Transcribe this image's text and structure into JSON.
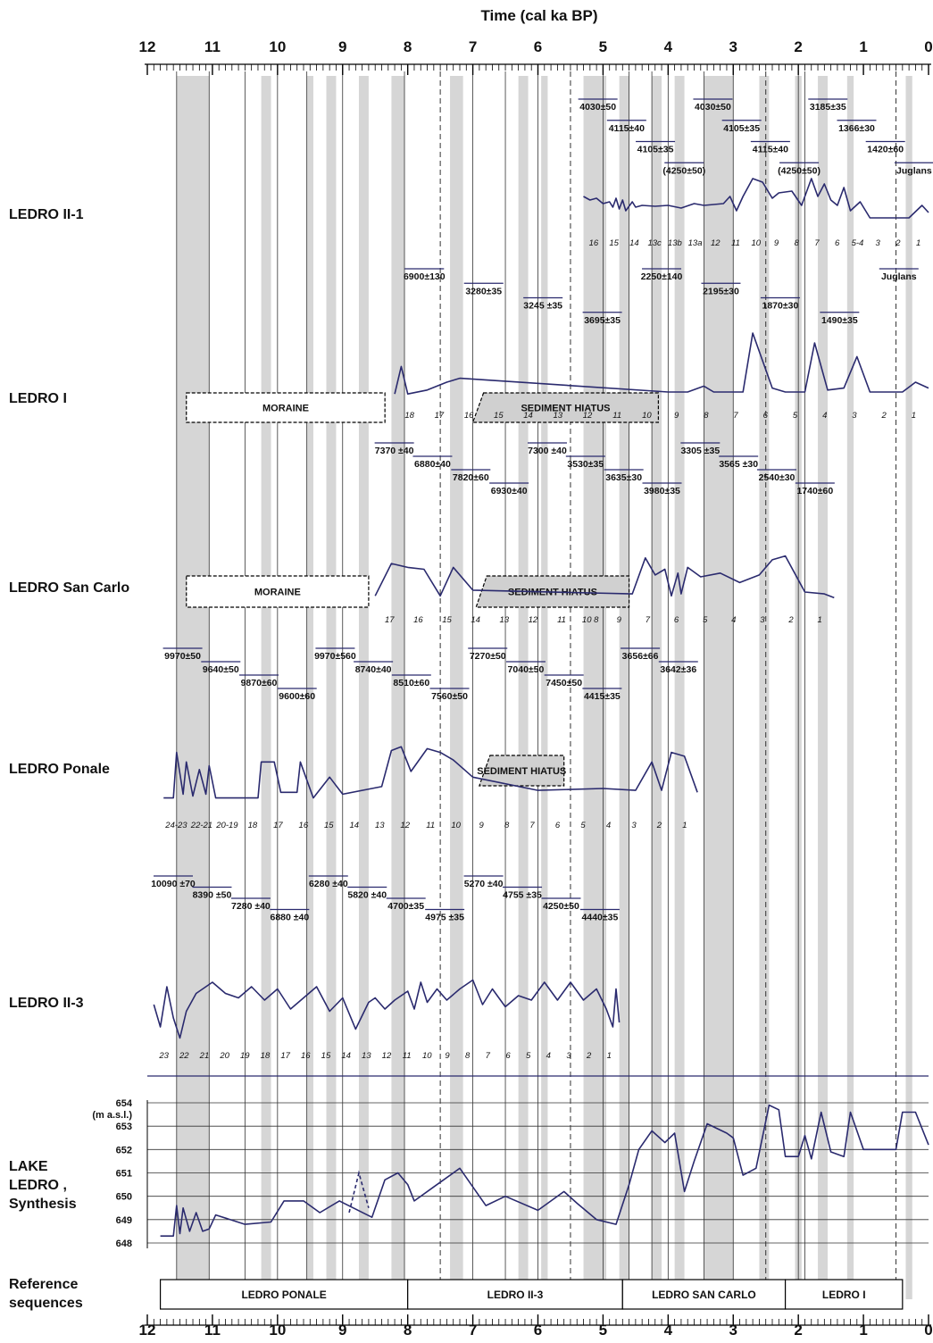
{
  "chart_data": {
    "type": "line",
    "title": "Time (cal ka BP)",
    "x_axis": {
      "ticks": [
        "12",
        "11",
        "10",
        "9",
        "8",
        "7",
        "6",
        "5",
        "4",
        "3",
        "2",
        "1",
        "0"
      ],
      "range": [
        12,
        0
      ],
      "reversed": true
    },
    "series": [
      {
        "name": "LEDRO II-1",
        "points": [
          [
            5.3,
            2.5
          ],
          [
            5.2,
            2.7
          ],
          [
            5.1,
            2.6
          ],
          [
            5.0,
            2.9
          ],
          [
            4.9,
            2.8
          ],
          [
            4.85,
            3.1
          ],
          [
            4.8,
            2.6
          ],
          [
            4.75,
            3.2
          ],
          [
            4.7,
            2.7
          ],
          [
            4.65,
            3.3
          ],
          [
            4.55,
            2.8
          ],
          [
            4.5,
            3.1
          ],
          [
            4.4,
            3.0
          ],
          [
            4.2,
            3.05
          ],
          [
            4.0,
            3.0
          ],
          [
            3.8,
            3.15
          ],
          [
            3.6,
            2.9
          ],
          [
            3.45,
            3.0
          ],
          [
            3.3,
            2.95
          ],
          [
            3.15,
            2.9
          ],
          [
            3.05,
            2.5
          ],
          [
            2.95,
            3.3
          ],
          [
            2.85,
            2.5
          ],
          [
            2.7,
            1.5
          ],
          [
            2.55,
            1.7
          ],
          [
            2.4,
            2.6
          ],
          [
            2.3,
            2.3
          ],
          [
            2.1,
            2.2
          ],
          [
            1.95,
            3.0
          ],
          [
            1.8,
            1.5
          ],
          [
            1.7,
            2.5
          ],
          [
            1.6,
            1.8
          ],
          [
            1.5,
            2.7
          ],
          [
            1.4,
            3.0
          ],
          [
            1.3,
            2.0
          ],
          [
            1.2,
            3.3
          ],
          [
            1.05,
            2.8
          ],
          [
            0.9,
            3.7
          ],
          [
            0.6,
            3.7
          ],
          [
            0.3,
            3.7
          ],
          [
            0.1,
            3.0
          ],
          [
            0.0,
            3.4
          ]
        ],
        "zones": [
          "16",
          "15",
          "14",
          "13c",
          "13b",
          "13a",
          "12",
          "11",
          "10",
          "9",
          "8",
          "7",
          "6",
          "5-4",
          "3",
          "2",
          "1"
        ]
      },
      {
        "name": "LEDRO I",
        "points": [
          [
            8.2,
            3.6
          ],
          [
            8.1,
            2.2
          ],
          [
            8.0,
            3.6
          ],
          [
            7.7,
            3.4
          ],
          [
            7.4,
            3.0
          ],
          [
            7.2,
            2.8
          ],
          [
            4.0,
            3.5
          ],
          [
            3.7,
            3.5
          ],
          [
            3.45,
            3.2
          ],
          [
            3.3,
            3.5
          ],
          [
            2.85,
            3.5
          ],
          [
            2.7,
            0.5
          ],
          [
            2.4,
            3.3
          ],
          [
            2.2,
            3.5
          ],
          [
            1.9,
            3.5
          ],
          [
            1.75,
            1.0
          ],
          [
            1.55,
            3.4
          ],
          [
            1.3,
            3.3
          ],
          [
            1.1,
            1.7
          ],
          [
            0.9,
            3.5
          ],
          [
            0.4,
            3.5
          ],
          [
            0.2,
            3.0
          ],
          [
            0.0,
            3.3
          ]
        ],
        "zones": [
          "18",
          "17",
          "16",
          "15",
          "14",
          "13",
          "12",
          "11",
          "10",
          "9",
          "8",
          "7",
          "6",
          "5",
          "4",
          "3",
          "2",
          "1"
        ]
      },
      {
        "name": "LEDRO San Carlo",
        "points": [
          [
            8.5,
            3.4
          ],
          [
            8.25,
            1.7
          ],
          [
            8.0,
            1.9
          ],
          [
            7.75,
            2.0
          ],
          [
            7.5,
            3.4
          ],
          [
            7.3,
            1.9
          ],
          [
            7.0,
            3.1
          ],
          [
            4.55,
            3.3
          ],
          [
            4.35,
            1.4
          ],
          [
            4.2,
            2.3
          ],
          [
            4.05,
            2.0
          ],
          [
            3.95,
            3.4
          ],
          [
            3.85,
            2.2
          ],
          [
            3.8,
            3.3
          ],
          [
            3.7,
            1.9
          ],
          [
            3.5,
            2.4
          ],
          [
            3.2,
            2.2
          ],
          [
            2.9,
            2.7
          ],
          [
            2.6,
            2.3
          ],
          [
            2.4,
            1.5
          ],
          [
            2.2,
            1.3
          ],
          [
            1.9,
            3.2
          ],
          [
            1.6,
            3.3
          ],
          [
            1.45,
            3.5
          ]
        ],
        "zones": [
          "17",
          "16",
          "15",
          "14",
          "13",
          "12",
          "11",
          "10 8",
          "9",
          "7",
          "6",
          "5",
          "4",
          "3",
          "2",
          "1"
        ]
      },
      {
        "name": "LEDRO Ponale",
        "points": [
          [
            11.75,
            3.7
          ],
          [
            11.6,
            3.7
          ],
          [
            11.55,
            1.3
          ],
          [
            11.45,
            3.5
          ],
          [
            11.4,
            1.8
          ],
          [
            11.3,
            3.6
          ],
          [
            11.2,
            2.2
          ],
          [
            11.1,
            3.5
          ],
          [
            11.05,
            2.0
          ],
          [
            10.95,
            3.7
          ],
          [
            10.3,
            3.7
          ],
          [
            10.25,
            1.8
          ],
          [
            10.05,
            1.8
          ],
          [
            9.95,
            3.4
          ],
          [
            9.7,
            3.4
          ],
          [
            9.65,
            1.8
          ],
          [
            9.45,
            3.7
          ],
          [
            9.2,
            2.6
          ],
          [
            9.0,
            3.5
          ],
          [
            8.4,
            3.1
          ],
          [
            8.25,
            1.2
          ],
          [
            8.1,
            1.0
          ],
          [
            7.95,
            2.3
          ],
          [
            7.7,
            1.1
          ],
          [
            7.5,
            1.3
          ],
          [
            7.3,
            1.7
          ],
          [
            7.0,
            2.6
          ],
          [
            6.0,
            3.3
          ],
          [
            5.0,
            3.2
          ],
          [
            4.5,
            3.3
          ],
          [
            4.25,
            1.8
          ],
          [
            4.1,
            3.3
          ],
          [
            3.95,
            1.3
          ],
          [
            3.75,
            1.5
          ],
          [
            3.55,
            3.4
          ]
        ],
        "zones": [
          "24-23",
          "22-21",
          "20-19",
          "18",
          "17",
          "16",
          "15",
          "14",
          "13",
          "12",
          "11",
          "10",
          "9",
          "8",
          "7",
          "6",
          "5",
          "4",
          "3",
          "2",
          "1"
        ]
      },
      {
        "name": "LEDRO II-3",
        "points": [
          [
            11.9,
            2.2
          ],
          [
            11.8,
            3.2
          ],
          [
            11.7,
            1.4
          ],
          [
            11.6,
            2.8
          ],
          [
            11.5,
            3.7
          ],
          [
            11.4,
            2.5
          ],
          [
            11.25,
            1.7
          ],
          [
            11.0,
            1.2
          ],
          [
            10.8,
            1.7
          ],
          [
            10.6,
            1.9
          ],
          [
            10.4,
            1.4
          ],
          [
            10.2,
            2.0
          ],
          [
            10.0,
            1.5
          ],
          [
            9.8,
            2.4
          ],
          [
            9.6,
            1.9
          ],
          [
            9.4,
            1.4
          ],
          [
            9.2,
            2.5
          ],
          [
            9.0,
            1.9
          ],
          [
            8.8,
            3.3
          ],
          [
            8.6,
            2.1
          ],
          [
            8.5,
            1.9
          ],
          [
            8.35,
            2.4
          ],
          [
            8.2,
            2.0
          ],
          [
            8.0,
            1.6
          ],
          [
            7.9,
            2.4
          ],
          [
            7.8,
            1.2
          ],
          [
            7.7,
            2.1
          ],
          [
            7.55,
            1.5
          ],
          [
            7.4,
            2.0
          ],
          [
            7.2,
            1.5
          ],
          [
            7.0,
            1.1
          ],
          [
            6.85,
            2.2
          ],
          [
            6.7,
            1.5
          ],
          [
            6.5,
            2.3
          ],
          [
            6.3,
            1.8
          ],
          [
            6.1,
            2.0
          ],
          [
            5.9,
            1.2
          ],
          [
            5.7,
            2.0
          ],
          [
            5.5,
            1.2
          ],
          [
            5.3,
            2.0
          ],
          [
            5.1,
            1.5
          ],
          [
            4.95,
            2.4
          ],
          [
            4.85,
            3.2
          ],
          [
            4.8,
            1.5
          ],
          [
            4.75,
            3.0
          ]
        ],
        "zones": [
          "23",
          "22",
          "21",
          "20",
          "19",
          "18",
          "17",
          "16",
          "15",
          "14",
          "13",
          "12",
          "11",
          "10",
          "9",
          "8",
          "7",
          "6",
          "5",
          "4",
          "3",
          "2",
          "1"
        ]
      },
      {
        "name": "LAKE LEDRO, Synthesis",
        "y_axis": {
          "label": "(m a.s.l.)",
          "ticks": [
            "654",
            "653",
            "652",
            "651",
            "650",
            "649",
            "648"
          ],
          "range": [
            648,
            654
          ]
        },
        "points": [
          [
            11.8,
            648.3
          ],
          [
            11.6,
            648.3
          ],
          [
            11.55,
            649.6
          ],
          [
            11.5,
            648.4
          ],
          [
            11.45,
            649.5
          ],
          [
            11.35,
            648.5
          ],
          [
            11.25,
            649.3
          ],
          [
            11.15,
            648.5
          ],
          [
            11.05,
            648.6
          ],
          [
            10.95,
            649.2
          ],
          [
            10.5,
            648.8
          ],
          [
            10.1,
            648.9
          ],
          [
            9.9,
            649.8
          ],
          [
            9.6,
            649.8
          ],
          [
            9.35,
            649.3
          ],
          [
            9.05,
            649.8
          ],
          [
            8.55,
            649.1
          ],
          [
            8.35,
            650.7
          ],
          [
            8.15,
            651.0
          ],
          [
            8.0,
            650.5
          ],
          [
            7.9,
            649.8
          ],
          [
            7.6,
            650.4
          ],
          [
            7.2,
            651.2
          ],
          [
            6.8,
            649.6
          ],
          [
            6.5,
            650.0
          ],
          [
            6.0,
            649.4
          ],
          [
            5.6,
            650.2
          ],
          [
            5.4,
            649.7
          ],
          [
            5.1,
            649.0
          ],
          [
            4.8,
            648.8
          ],
          [
            4.6,
            650.5
          ],
          [
            4.45,
            652.0
          ],
          [
            4.25,
            652.8
          ],
          [
            4.05,
            652.3
          ],
          [
            3.9,
            652.7
          ],
          [
            3.75,
            650.2
          ],
          [
            3.6,
            651.5
          ],
          [
            3.4,
            653.1
          ],
          [
            3.1,
            652.7
          ],
          [
            3.0,
            652.5
          ],
          [
            2.85,
            650.9
          ],
          [
            2.65,
            651.2
          ],
          [
            2.45,
            653.9
          ],
          [
            2.3,
            653.7
          ],
          [
            2.2,
            651.7
          ],
          [
            2.0,
            651.7
          ],
          [
            1.9,
            652.6
          ],
          [
            1.8,
            651.6
          ],
          [
            1.65,
            653.6
          ],
          [
            1.5,
            651.9
          ],
          [
            1.3,
            651.7
          ],
          [
            1.2,
            653.6
          ],
          [
            1.0,
            652.0
          ],
          [
            0.5,
            652.0
          ],
          [
            0.4,
            653.6
          ],
          [
            0.2,
            653.6
          ],
          [
            0.0,
            652.2
          ]
        ]
      }
    ],
    "row_labels": [
      "LEDRO II-1",
      "LEDRO I",
      "LEDRO San Carlo",
      "LEDRO Ponale",
      "LEDRO  II-3"
    ],
    "synthesis_label": [
      "LAKE",
      "LEDRO ,",
      "Synthesis"
    ],
    "reference_label": [
      "Reference",
      "sequences"
    ],
    "reference_sequences": [
      {
        "label": "LEDRO PONALE",
        "from": 11.8,
        "to": 8.0
      },
      {
        "label": "LEDRO II-3",
        "from": 8.0,
        "to": 4.7
      },
      {
        "label": "LEDRO SAN CARLO",
        "from": 4.7,
        "to": 2.2
      },
      {
        "label": "LEDRO I",
        "from": 2.2,
        "to": 0.4
      }
    ],
    "hiatus_boxes": [
      {
        "row": "LEDRO I",
        "label": "MORAINE",
        "from": 11.4,
        "to": 8.35
      },
      {
        "row": "LEDRO I",
        "label": "SEDIMENT HIATUS",
        "from": 7.0,
        "to": 4.15
      },
      {
        "row": "LEDRO San Carlo",
        "label": "MORAINE",
        "from": 11.4,
        "to": 8.6
      },
      {
        "row": "LEDRO San Carlo",
        "label": "SEDIMENT HIATUS",
        "from": 6.95,
        "to": 4.6
      },
      {
        "row": "LEDRO Ponale",
        "label": "SEDIMENT HIATUS",
        "from": 6.9,
        "to": 5.6
      }
    ],
    "shaded_intervals": [
      [
        11.55,
        11.05
      ],
      [
        10.25,
        10.1
      ],
      [
        9.55,
        9.45
      ],
      [
        9.25,
        9.1
      ],
      [
        8.75,
        8.6
      ],
      [
        8.25,
        8.05
      ],
      [
        7.35,
        7.15
      ],
      [
        6.3,
        6.15
      ],
      [
        5.95,
        5.85
      ],
      [
        5.3,
        4.95
      ],
      [
        4.75,
        4.6
      ],
      [
        4.25,
        4.1
      ],
      [
        3.9,
        3.75
      ],
      [
        3.45,
        3.0
      ],
      [
        2.6,
        2.45
      ],
      [
        2.05,
        1.95
      ],
      [
        1.7,
        1.55
      ],
      [
        1.25,
        1.15
      ],
      [
        0.35,
        0.25
      ]
    ],
    "radiocarbon_dates": [
      {
        "row": "LEDRO II-1",
        "labels": [
          "4030±50",
          "4115±40",
          "4105±35",
          "(4250±50)",
          "4030±50",
          "4105±35",
          "4115±40",
          "(4250±50)",
          "3185±35",
          "1366±30",
          "1420±60",
          "Juglans"
        ]
      },
      {
        "row": "LEDRO I",
        "labels": [
          "6900±130",
          "3280±35",
          "3245 ±35",
          "3695±35",
          "2250±140",
          "2195±30",
          "1870±30",
          "1490±35",
          "Juglans"
        ]
      },
      {
        "row": "LEDRO San Carlo",
        "labels": [
          "7370 ±40",
          "6880±40",
          "7820±60",
          "6930±40",
          "7300 ±40",
          "3530±35",
          "3635±30",
          "3980±35",
          "3305 ±35",
          "3565 ±30",
          "2540±30",
          "1740±60"
        ]
      },
      {
        "row": "LEDRO Ponale",
        "labels": [
          "9970±50",
          "9640±50",
          "9870±60",
          "9600±60",
          "9970±560",
          "8740±40",
          "8510±60",
          "7560±50",
          "7270±50",
          "7040±50",
          "7450±50",
          "4415±35",
          "3656±66",
          "3642±36"
        ]
      },
      {
        "row": "LEDRO  II-3",
        "labels": [
          "10090 ±70",
          "8390 ±50",
          "7280 ±40",
          "6880 ±40",
          "6280 ±40",
          "5820 ±40",
          "4700±35",
          "4975 ±35",
          "5270 ±40",
          "4755 ±35",
          "4250±50",
          "4440±35"
        ]
      }
    ]
  }
}
